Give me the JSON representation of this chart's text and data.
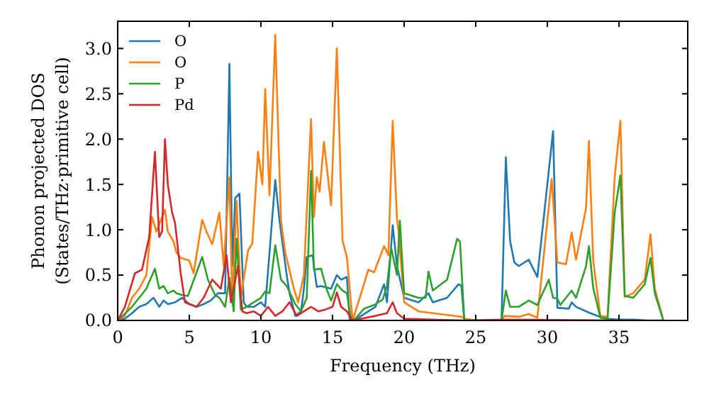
{
  "chart_data": {
    "type": "line",
    "xlabel": "Frequency (THz)",
    "ylabel": "Phonon projected DOS\n(States/THz·primitive cell)",
    "xlim": [
      0,
      39.8
    ],
    "ylim": [
      0,
      3.3
    ],
    "xticks": [
      0,
      5,
      10,
      15,
      20,
      25,
      30,
      35
    ],
    "yticks": [
      {
        "value": 0,
        "label": "0.0"
      },
      {
        "value": 0.5,
        "label": "0.5"
      },
      {
        "value": 1,
        "label": "1.0"
      },
      {
        "value": 1.5,
        "label": "1.5"
      },
      {
        "value": 2,
        "label": "2.0"
      },
      {
        "value": 2.5,
        "label": "2.5"
      },
      {
        "value": 3,
        "label": "3.0"
      }
    ],
    "grid": false,
    "legend": "top left",
    "marker": "none",
    "line_style": "solid",
    "series": [
      {
        "name": "O",
        "color": "#1f77b4",
        "x": [
          0,
          0.5,
          1,
          1.5,
          2,
          2.5,
          2.9,
          3.2,
          3.5,
          4,
          4.5,
          5,
          5.5,
          6,
          6.5,
          7,
          7.5,
          7.8,
          8,
          8.2,
          8.5,
          8.8,
          9,
          9.5,
          10,
          10.3,
          11,
          11.3,
          11.8,
          12,
          12.4,
          12.8,
          13,
          13.2,
          13.6,
          13.9,
          14.2,
          14.9,
          15.3,
          15.6,
          16,
          16.2,
          16.5,
          17,
          17.5,
          18,
          18.6,
          18.8,
          19.2,
          19.5,
          20,
          21,
          21.7,
          22,
          23,
          23.8,
          24,
          24.2,
          26.8,
          27.1,
          27.4,
          27.7,
          28,
          28.7,
          29.3,
          30.4,
          30.7,
          31.5,
          31.7,
          32,
          33,
          34,
          35,
          36,
          37,
          38
        ],
        "values": [
          0,
          0.02,
          0.08,
          0.15,
          0.18,
          0.25,
          0.15,
          0.22,
          0.18,
          0.2,
          0.25,
          0.18,
          0.15,
          0.18,
          0.22,
          0.3,
          0.3,
          2.83,
          0.6,
          1.35,
          1.4,
          0.2,
          0.15,
          0.15,
          0.2,
          0.15,
          1.55,
          1.1,
          0.5,
          0.3,
          0.05,
          0.1,
          0.35,
          0.7,
          0.72,
          0.37,
          0.38,
          0.35,
          0.5,
          0.45,
          0.48,
          0,
          0,
          0.05,
          0.1,
          0.15,
          0.4,
          0.2,
          1.05,
          0.6,
          0.25,
          0.2,
          0.3,
          0.2,
          0.25,
          0.4,
          0.38,
          0,
          0,
          1.8,
          0.87,
          0.64,
          0.6,
          0.67,
          0.48,
          2.09,
          0.14,
          0.13,
          0.2,
          0.15,
          0.08,
          0.02,
          0.01,
          0.01,
          0,
          0
        ]
      },
      {
        "name": "O",
        "color": "#ff7f0e",
        "x": [
          0,
          0.5,
          1,
          1.5,
          2,
          2.4,
          2.7,
          3.3,
          3.5,
          3.9,
          4.1,
          4.4,
          5,
          5.3,
          5.9,
          6.2,
          6.6,
          7.1,
          7.4,
          7.8,
          8,
          8.3,
          8.6,
          9.1,
          9.4,
          9.8,
          10.1,
          10.3,
          10.6,
          11,
          11.4,
          11.7,
          12.3,
          12.6,
          13,
          13.5,
          13.7,
          13.9,
          14.1,
          14.4,
          14.9,
          15.3,
          15.7,
          16,
          16.4,
          17,
          17.5,
          17.9,
          18.6,
          18.9,
          19.2,
          19.5,
          19.6,
          20,
          21,
          22,
          23,
          24,
          24.2,
          25,
          26.8,
          27,
          28,
          28.7,
          29.3,
          30.3,
          30.7,
          31.3,
          31.7,
          32,
          32.7,
          32.9,
          33.2,
          33.7,
          34.2,
          34.7,
          35.1,
          35.4,
          36,
          36.8,
          37.2,
          37.5,
          38.1
        ],
        "values": [
          0,
          0.05,
          0.25,
          0.35,
          0.5,
          1.14,
          0.98,
          1.22,
          0.98,
          0.87,
          0.75,
          0.69,
          0.66,
          0.52,
          1.11,
          0.98,
          0.84,
          1.19,
          0.6,
          1.58,
          0.2,
          1.32,
          0.25,
          0.77,
          0.85,
          1.86,
          1.5,
          2.55,
          1.38,
          3.15,
          1.1,
          0.75,
          0.35,
          0.2,
          0.5,
          2.22,
          1.14,
          1.58,
          1.42,
          1.97,
          1.27,
          3,
          0.88,
          0.7,
          0,
          0.3,
          0.56,
          0.53,
          0.82,
          0.72,
          2.2,
          1.12,
          1,
          0.2,
          0.1,
          0.08,
          0.06,
          0.04,
          0.02,
          0,
          0,
          0.05,
          0.04,
          0.07,
          0.03,
          1.56,
          0.64,
          0.62,
          0.97,
          0.67,
          1.24,
          1.98,
          0.66,
          0.05,
          0.04,
          1.58,
          2.2,
          0.26,
          0.3,
          0.45,
          0.95,
          0.35,
          0
        ]
      },
      {
        "name": "P",
        "color": "#2ca02c",
        "x": [
          0,
          1,
          1.5,
          2,
          2.6,
          2.9,
          3.2,
          3.5,
          3.9,
          4.1,
          4.5,
          4.9,
          5.9,
          6.3,
          6.8,
          7.1,
          7.5,
          7.8,
          8.1,
          8.3,
          8.6,
          9,
          9.5,
          10,
          10.3,
          10.6,
          11,
          11.4,
          11.8,
          12.4,
          12.8,
          13.2,
          13.5,
          13.7,
          14.2,
          14.6,
          14.9,
          15.3,
          15.7,
          16,
          16.3,
          16.6,
          17.2,
          17.9,
          18.5,
          18.8,
          19.1,
          19.5,
          19.7,
          20,
          21,
          21.5,
          21.7,
          22,
          23,
          23.7,
          23.9,
          24.2,
          26.8,
          27.1,
          27.4,
          28,
          28.7,
          29.3,
          30.1,
          30.4,
          30.7,
          30.9,
          31.7,
          32,
          32.7,
          32.9,
          33.2,
          33.7,
          34.2,
          34.7,
          35.1,
          35.4,
          36,
          36.8,
          37.2,
          37.5,
          38.1
        ],
        "values": [
          0,
          0.15,
          0.25,
          0.35,
          0.57,
          0.35,
          0.38,
          0.3,
          0.33,
          0.3,
          0.28,
          0.27,
          0.7,
          0.45,
          0.28,
          0.25,
          0.15,
          0.47,
          0.1,
          0.9,
          0.12,
          0.15,
          0.2,
          0.25,
          0.32,
          0.3,
          0.83,
          0.45,
          0.38,
          0.18,
          0.1,
          0.25,
          1.65,
          0.56,
          0.57,
          0.34,
          0.22,
          0.4,
          0.33,
          0.3,
          0,
          0.02,
          0.13,
          0.17,
          0.23,
          0.38,
          0.8,
          0.5,
          1.1,
          0.3,
          0.25,
          0.25,
          0.54,
          0.33,
          0.45,
          0.9,
          0.87,
          0,
          0,
          0.33,
          0.15,
          0.15,
          0.22,
          0.17,
          0.45,
          0.25,
          0.24,
          0.17,
          0.33,
          0.25,
          0.6,
          0.82,
          0.36,
          0.03,
          0.02,
          1.19,
          1.6,
          0.27,
          0.25,
          0.4,
          0.69,
          0.3,
          0
        ]
      },
      {
        "name": "Pd",
        "color": "#d62728",
        "x": [
          0,
          0.5,
          1.2,
          1.7,
          2.2,
          2.6,
          2.9,
          3.1,
          3.3,
          3.5,
          3.8,
          4,
          4.4,
          4.7,
          5.5,
          6,
          6.6,
          7.2,
          7.6,
          7.9,
          8.4,
          8.7,
          9,
          9.5,
          10,
          10.5,
          11,
          11.5,
          12,
          12.5,
          13,
          13.5,
          14,
          14.5,
          15,
          15.3,
          15.6,
          16,
          16.4,
          17,
          18,
          18.8,
          19.2,
          19.5,
          20,
          22,
          24.2,
          27,
          35
        ],
        "values": [
          0,
          0.15,
          0.52,
          0.56,
          0.92,
          1.86,
          0.92,
          0.98,
          2,
          1.5,
          1.19,
          1.08,
          0.52,
          0.2,
          0.15,
          0.25,
          0.45,
          0.35,
          0.72,
          0.2,
          0.6,
          0.1,
          0.08,
          0.1,
          0.05,
          0.15,
          0.05,
          0.1,
          0.2,
          0.05,
          0.1,
          0.15,
          0.1,
          0.12,
          0.15,
          0.31,
          0.15,
          0.1,
          0,
          0.02,
          0.05,
          0.08,
          0.2,
          0.08,
          0.02,
          0.01,
          0,
          0.01,
          0
        ]
      }
    ]
  }
}
